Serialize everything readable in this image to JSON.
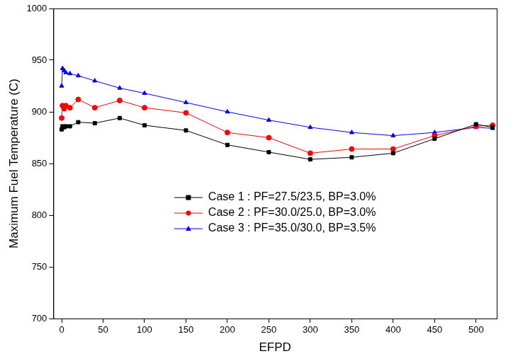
{
  "chart_data": {
    "type": "line",
    "x_label": "EFPD",
    "y_label": "Maximum Fuel Temperature (C)",
    "xlim": [
      -10,
      525
    ],
    "xticks": [
      0,
      50,
      100,
      150,
      200,
      250,
      300,
      350,
      400,
      450,
      500
    ],
    "ylim": [
      700,
      1000
    ],
    "yticks": [
      700,
      750,
      800,
      850,
      900,
      950,
      1000
    ],
    "grid": false,
    "legend": "center",
    "x": [
      0,
      1,
      3,
      5,
      10,
      20,
      40,
      70,
      100,
      150,
      200,
      250,
      300,
      350,
      400,
      450,
      500,
      520
    ],
    "series": [
      {
        "name": "Case 1 : PF=27.5/23.5, BP=3.0%",
        "color": "#000000",
        "marker": "square",
        "values": [
          883,
          886,
          885,
          886,
          886,
          890,
          889,
          894,
          887,
          882,
          868,
          861,
          854,
          856,
          860,
          874,
          888,
          885
        ]
      },
      {
        "name": "Case 2 : PF=30.0/25.0, BP=3.0%",
        "color": "#ff0000",
        "marker": "circle",
        "values": [
          894,
          906,
          903,
          906,
          904,
          912,
          904,
          911,
          904,
          899,
          880,
          875,
          860,
          864,
          864,
          877,
          886,
          887
        ]
      },
      {
        "name": "Case 3 : PF=35.0/30.0, BP=3.5%",
        "color": "#0000ff",
        "marker": "triangle",
        "values": [
          925,
          942,
          940,
          938,
          937,
          935,
          930,
          923,
          918,
          909,
          900,
          892,
          885,
          880,
          877,
          880,
          885,
          884
        ]
      }
    ]
  }
}
